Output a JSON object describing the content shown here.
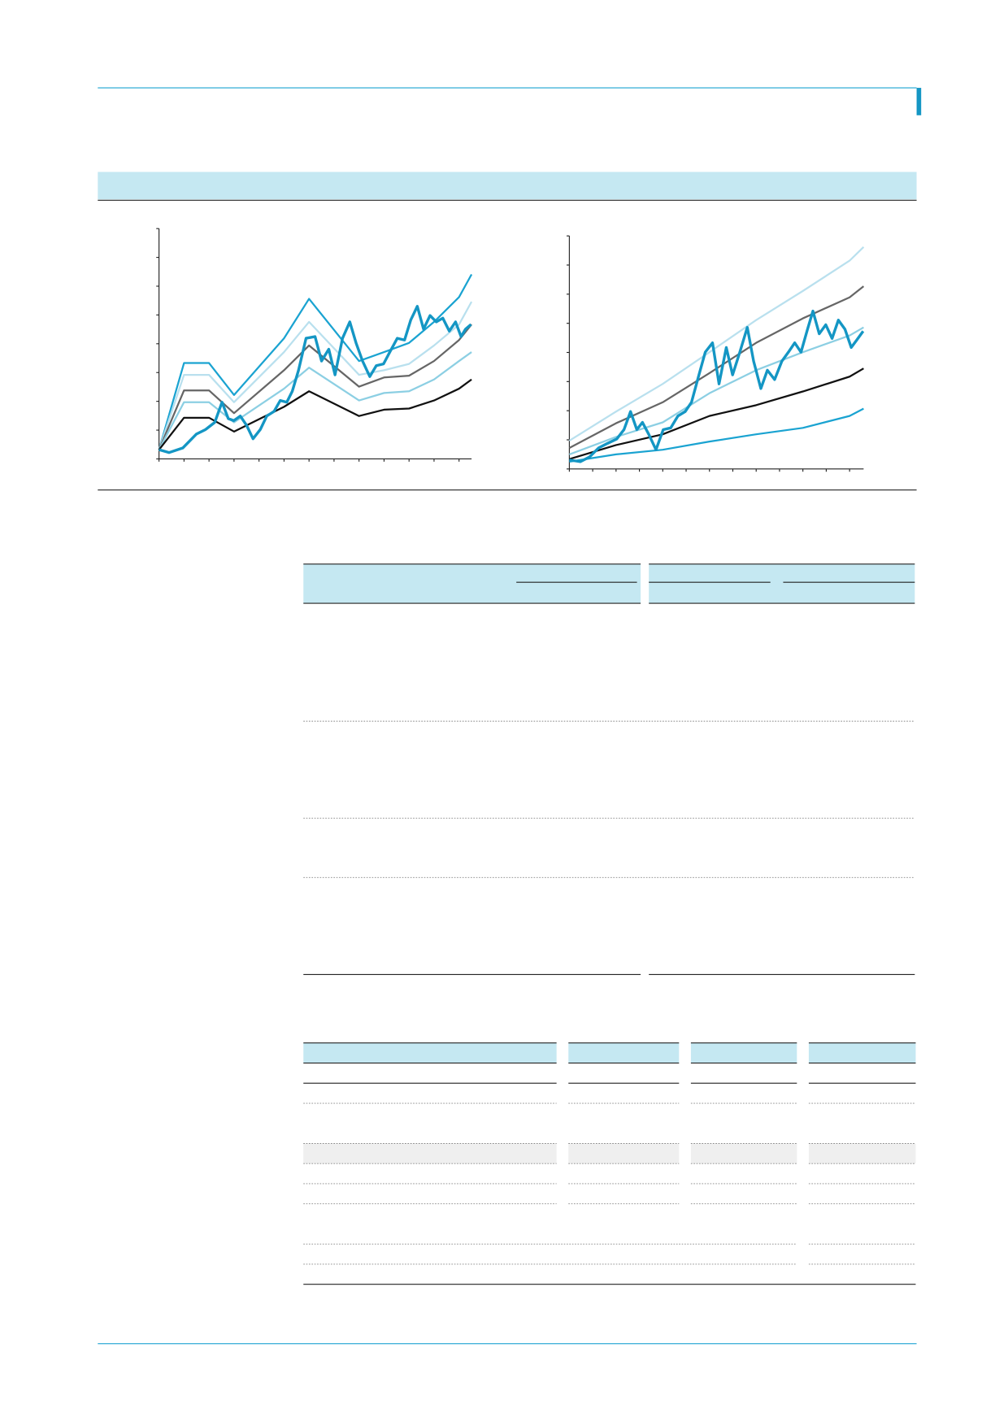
{
  "chart_data": [
    {
      "type": "line",
      "xlim": [
        0,
        12.5
      ],
      "ylim": [
        0,
        8
      ],
      "xticks": [
        0,
        1,
        2,
        3,
        4,
        5,
        6,
        7,
        8,
        9,
        10,
        11,
        12
      ],
      "yticks": [
        0,
        1,
        2,
        3,
        4,
        5,
        6,
        7,
        8
      ],
      "series": [
        {
          "color": "#1aa3d1",
          "width": 2,
          "x": [
            0,
            1,
            2,
            3,
            5,
            6,
            8,
            9,
            10,
            11,
            12,
            12.5
          ],
          "values": [
            0.32,
            3.33,
            3.33,
            2.22,
            4.19,
            5.56,
            3.4,
            3.71,
            4.03,
            4.76,
            5.62,
            6.41
          ]
        },
        {
          "color": "#b9e0ee",
          "width": 2,
          "x": [
            0,
            1,
            2,
            3,
            5,
            6,
            8,
            9,
            10,
            11,
            12,
            12.5
          ],
          "values": [
            0.32,
            2.92,
            2.92,
            1.97,
            3.71,
            4.76,
            2.92,
            3.08,
            3.3,
            3.94,
            4.67,
            5.46
          ]
        },
        {
          "color": "#666666",
          "width": 2,
          "x": [
            0,
            1,
            2,
            3,
            5,
            6,
            8,
            9,
            10,
            11,
            12,
            12.5
          ],
          "values": [
            0.32,
            2.38,
            2.38,
            1.59,
            3.08,
            3.94,
            2.51,
            2.83,
            2.89,
            3.4,
            4.13,
            4.67
          ]
        },
        {
          "color": "#8ccfe3",
          "width": 2,
          "x": [
            0,
            1,
            2,
            3,
            5,
            6,
            8,
            9,
            10,
            11,
            12,
            12.5
          ],
          "values": [
            0.32,
            1.97,
            1.97,
            1.27,
            2.44,
            3.17,
            2.03,
            2.29,
            2.35,
            2.76,
            3.4,
            3.71
          ]
        },
        {
          "color": "#111111",
          "width": 2,
          "x": [
            0,
            1,
            2,
            3,
            5,
            6,
            8,
            9,
            10,
            11,
            12,
            12.5
          ],
          "values": [
            0.32,
            1.43,
            1.43,
            0.95,
            1.81,
            2.35,
            1.49,
            1.71,
            1.75,
            2.03,
            2.44,
            2.76
          ]
        },
        {
          "color": "#1496c4",
          "width": 3,
          "x": [
            0,
            0.4,
            0.95,
            1.49,
            1.86,
            2.23,
            2.52,
            2.77,
            2.99,
            3.25,
            3.5,
            3.76,
            4.05,
            4.31,
            4.6,
            4.85,
            5.11,
            5.33,
            5.58,
            5.88,
            6.24,
            6.5,
            6.79,
            7.04,
            7.34,
            7.63,
            7.88,
            8.14,
            8.43,
            8.69,
            8.98,
            9.23,
            9.53,
            9.82,
            10.07,
            10.33,
            10.58,
            10.84,
            11.09,
            11.35,
            11.61,
            11.86,
            12.08,
            12.26,
            12.48
          ],
          "values": [
            0.32,
            0.22,
            0.38,
            0.86,
            1.02,
            1.27,
            1.97,
            1.4,
            1.33,
            1.49,
            1.17,
            0.7,
            1.02,
            1.49,
            1.65,
            2.03,
            1.97,
            2.35,
            3.08,
            4.19,
            4.25,
            3.4,
            3.81,
            2.92,
            4.19,
            4.76,
            4.03,
            3.4,
            2.86,
            3.24,
            3.3,
            3.71,
            4.19,
            4.13,
            4.83,
            5.3,
            4.51,
            4.98,
            4.76,
            4.89,
            4.44,
            4.76,
            4.25,
            4.51,
            4.67
          ]
        }
      ]
    },
    {
      "type": "line",
      "xlim": [
        0,
        12.6
      ],
      "ylim": [
        0,
        8
      ],
      "xticks": [
        0,
        1,
        2,
        3,
        4,
        5,
        6,
        7,
        8,
        9,
        10,
        11,
        12
      ],
      "yticks": [
        0,
        1,
        2,
        3,
        4,
        5,
        6,
        7,
        8
      ],
      "series": [
        {
          "color": "#b9e0ee",
          "width": 2,
          "x": [
            0,
            2,
            4,
            6,
            8,
            10,
            12,
            12.6
          ],
          "values": [
            0.97,
            1.97,
            2.92,
            4.01,
            5.11,
            6.11,
            7.15,
            7.62
          ]
        },
        {
          "color": "#666666",
          "width": 2,
          "x": [
            0,
            2,
            4,
            6,
            8,
            10,
            12,
            12.6
          ],
          "values": [
            0.72,
            1.57,
            2.29,
            3.29,
            4.33,
            5.17,
            5.89,
            6.27
          ]
        },
        {
          "color": "#8ccfe3",
          "width": 2,
          "x": [
            0,
            2,
            4,
            6,
            8,
            10,
            12,
            12.6
          ],
          "values": [
            0.5,
            1.1,
            1.6,
            2.6,
            3.39,
            4.01,
            4.58,
            4.86
          ]
        },
        {
          "color": "#111111",
          "width": 2,
          "x": [
            0,
            2,
            4,
            6,
            8,
            10,
            12,
            12.6
          ],
          "values": [
            0.34,
            0.82,
            1.19,
            1.82,
            2.19,
            2.66,
            3.17,
            3.45
          ]
        },
        {
          "color": "#1aa3d1",
          "width": 2,
          "x": [
            0,
            2,
            4,
            6,
            8,
            10,
            12,
            12.6
          ],
          "values": [
            0.25,
            0.5,
            0.66,
            0.94,
            1.19,
            1.41,
            1.82,
            2.07
          ]
        },
        {
          "color": "#1496c4",
          "width": 3,
          "x": [
            0,
            0.47,
            0.86,
            1.25,
            1.64,
            2.03,
            2.34,
            2.62,
            2.89,
            3.13,
            3.4,
            3.71,
            4.02,
            4.34,
            4.65,
            4.96,
            5.23,
            5.55,
            5.82,
            6.13,
            6.41,
            6.72,
            6.99,
            7.3,
            7.62,
            7.89,
            8.2,
            8.48,
            8.79,
            9.1,
            9.38,
            9.65,
            9.92,
            10.2,
            10.43,
            10.7,
            10.98,
            11.25,
            11.52,
            11.8,
            12.07,
            12.3,
            12.58
          ],
          "values": [
            0.31,
            0.25,
            0.41,
            0.72,
            0.88,
            1.03,
            1.35,
            1.97,
            1.35,
            1.6,
            1.19,
            0.66,
            1.35,
            1.41,
            1.82,
            1.97,
            2.29,
            3.23,
            4.01,
            4.33,
            2.92,
            4.17,
            3.23,
            4.01,
            4.86,
            3.7,
            2.76,
            3.39,
            3.07,
            3.7,
            4.01,
            4.33,
            4.01,
            4.8,
            5.42,
            4.64,
            4.95,
            4.48,
            5.11,
            4.8,
            4.17,
            4.42,
            4.73
          ]
        }
      ]
    }
  ]
}
